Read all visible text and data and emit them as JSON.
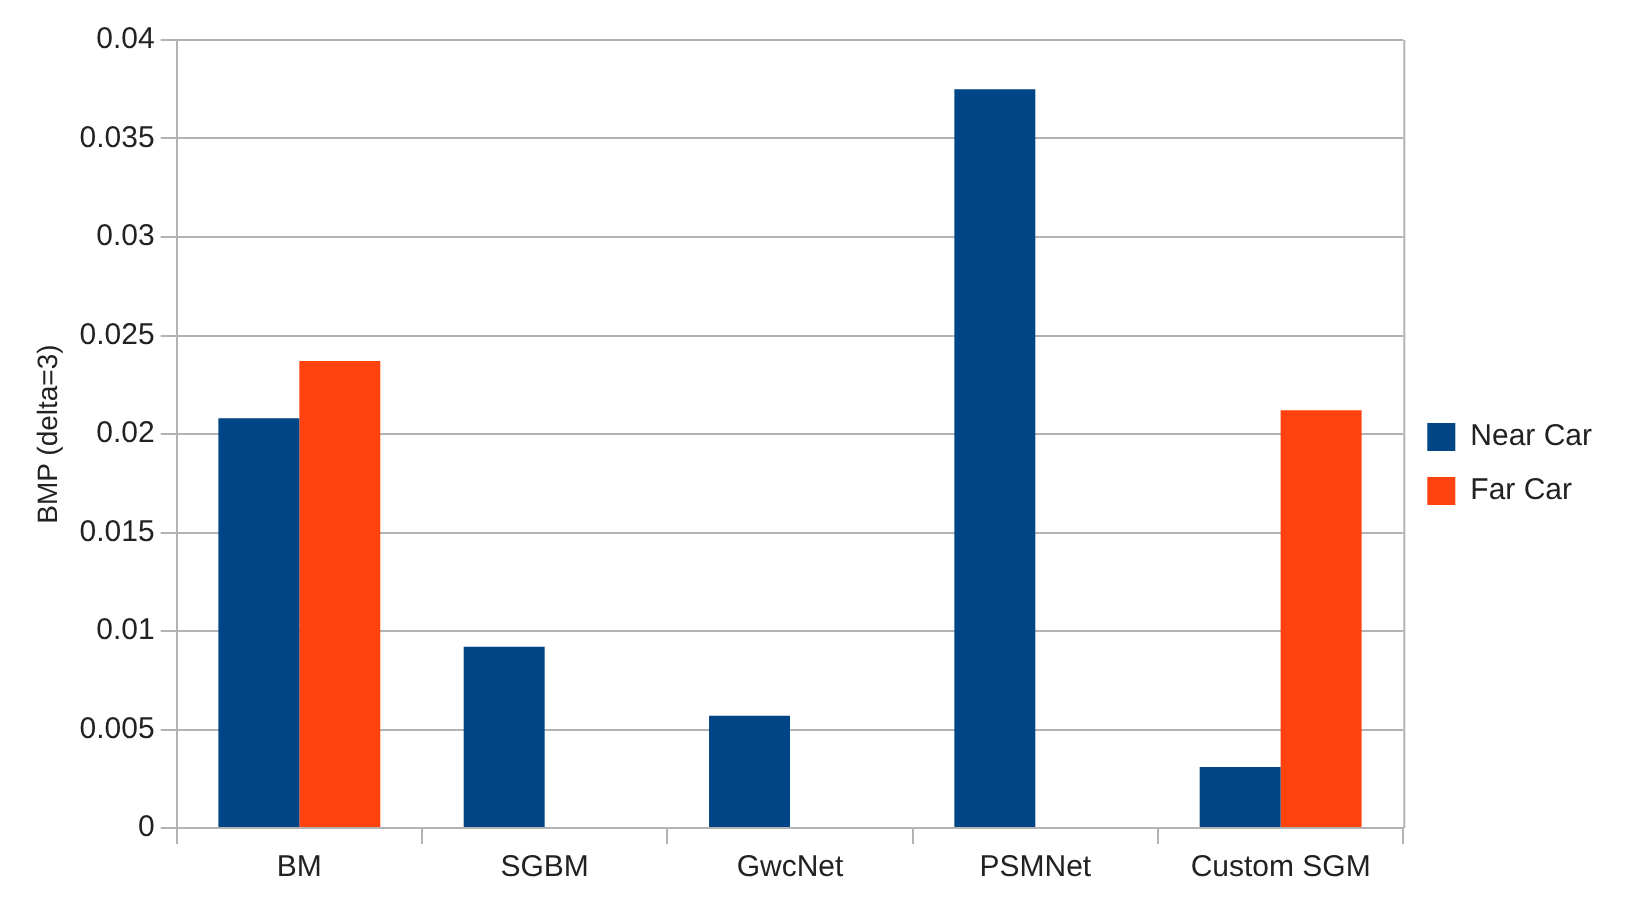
{
  "chart_data": {
    "type": "bar",
    "ylabel": "BMP (delta=3)",
    "categories": [
      "BM",
      "SGBM",
      "GwcNet",
      "PSMNet",
      "Custom SGM"
    ],
    "series": [
      {
        "name": "Near Car",
        "color": "#004586",
        "values": [
          0.0208,
          0.0092,
          0.0057,
          0.0375,
          0.0031
        ]
      },
      {
        "name": "Far Car",
        "color": "#ff420e",
        "values": [
          0.0237,
          null,
          null,
          null,
          0.0212
        ]
      }
    ],
    "ylim": [
      0,
      0.04
    ],
    "yticks": [
      0,
      0.005,
      0.01,
      0.015,
      0.02,
      0.025,
      0.03,
      0.035,
      0.04
    ],
    "grid": "y",
    "legend": "right"
  }
}
